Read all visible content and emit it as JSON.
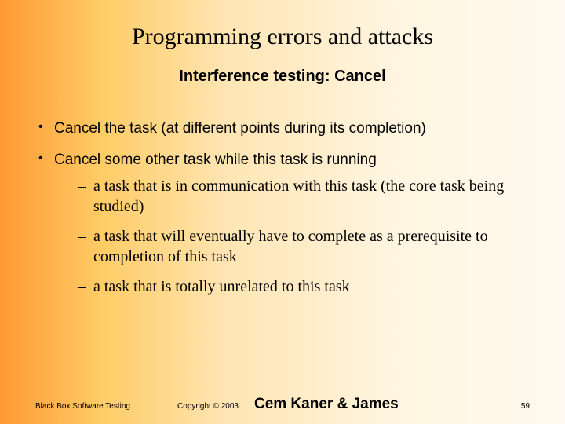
{
  "title": "Programming errors and attacks",
  "subtitle": "Interference testing: Cancel",
  "bullets": {
    "b1": "Cancel the task (at different points during its completion)",
    "b2": "Cancel some other task while this task is running",
    "sub": {
      "s1": "a task that is in communication with this task (the core task being studied)",
      "s2": "a task that will eventually have to complete as a prerequisite to completion of this task",
      "s3": "a task that is totally unrelated to this task"
    }
  },
  "footer": {
    "left": "Black Box Software Testing",
    "copy": "Copyright © 2003",
    "authors": "Cem Kaner & James",
    "pagenum": "59"
  },
  "style": {
    "bg_gradient_from": "#ff9933",
    "bg_gradient_to": "#fffaf0",
    "title_fontsize": 30,
    "subtitle_fontsize": 20,
    "bullet_fontsize": 19,
    "sub_fontsize": 20,
    "footer_small_fontsize": 10,
    "authors_fontsize": 19,
    "title_font": "Times New Roman",
    "bullet_font": "Arial",
    "sub_font": "Times New Roman",
    "subtitle_font": "Arial",
    "text_color": "#000000"
  }
}
